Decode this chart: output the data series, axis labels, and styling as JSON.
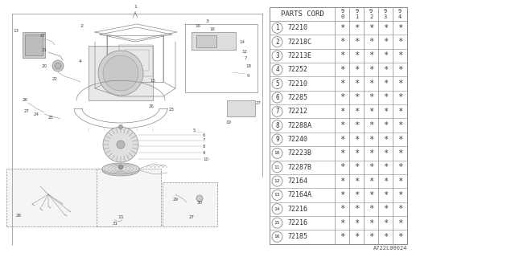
{
  "bg_color": "#ffffff",
  "parts_cord_header": "PARTS CORD",
  "year_cols": [
    "9\n0",
    "9\n1",
    "9\n2",
    "9\n3",
    "9\n4"
  ],
  "rows": [
    [
      1,
      "72210"
    ],
    [
      2,
      "72218C"
    ],
    [
      3,
      "72213E"
    ],
    [
      4,
      "72252"
    ],
    [
      5,
      "72210"
    ],
    [
      6,
      "72285"
    ],
    [
      7,
      "72212"
    ],
    [
      8,
      "72288A"
    ],
    [
      9,
      "72240"
    ],
    [
      10,
      "72223B"
    ],
    [
      11,
      "72287B"
    ],
    [
      12,
      "72164"
    ],
    [
      13,
      "72164A"
    ],
    [
      14,
      "72216"
    ],
    [
      15,
      "72216"
    ],
    [
      16,
      "72185"
    ]
  ],
  "diagram_label": "A722L00024",
  "line_color": "#888888",
  "text_color": "#444444"
}
